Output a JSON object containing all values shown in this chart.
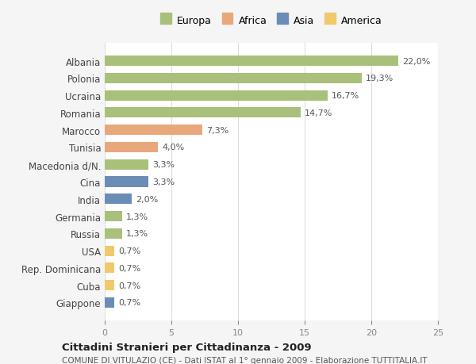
{
  "categories": [
    "Albania",
    "Polonia",
    "Ucraina",
    "Romania",
    "Marocco",
    "Tunisia",
    "Macedonia d/N.",
    "Cina",
    "India",
    "Germania",
    "Russia",
    "USA",
    "Rep. Dominicana",
    "Cuba",
    "Giappone"
  ],
  "values": [
    22.0,
    19.3,
    16.7,
    14.7,
    7.3,
    4.0,
    3.3,
    3.3,
    2.0,
    1.3,
    1.3,
    0.7,
    0.7,
    0.7,
    0.7
  ],
  "labels": [
    "22,0%",
    "19,3%",
    "16,7%",
    "14,7%",
    "7,3%",
    "4,0%",
    "3,3%",
    "3,3%",
    "2,0%",
    "1,3%",
    "1,3%",
    "0,7%",
    "0,7%",
    "0,7%",
    "0,7%"
  ],
  "continents": [
    "Europa",
    "Europa",
    "Europa",
    "Europa",
    "Africa",
    "Africa",
    "Europa",
    "Asia",
    "Asia",
    "Europa",
    "Europa",
    "America",
    "America",
    "America",
    "Asia"
  ],
  "colors": {
    "Europa": "#a8c07a",
    "Africa": "#e8a87c",
    "Asia": "#6b8db5",
    "America": "#f0c96c"
  },
  "legend_order": [
    "Europa",
    "Africa",
    "Asia",
    "America"
  ],
  "title": "Cittadini Stranieri per Cittadinanza - 2009",
  "subtitle": "COMUNE DI VITULAZIO (CE) - Dati ISTAT al 1° gennaio 2009 - Elaborazione TUTTITALIA.IT",
  "xlim": [
    0,
    25
  ],
  "xticks": [
    0,
    5,
    10,
    15,
    20,
    25
  ],
  "background_color": "#f5f5f5",
  "bar_background": "#ffffff",
  "grid_color": "#dddddd"
}
